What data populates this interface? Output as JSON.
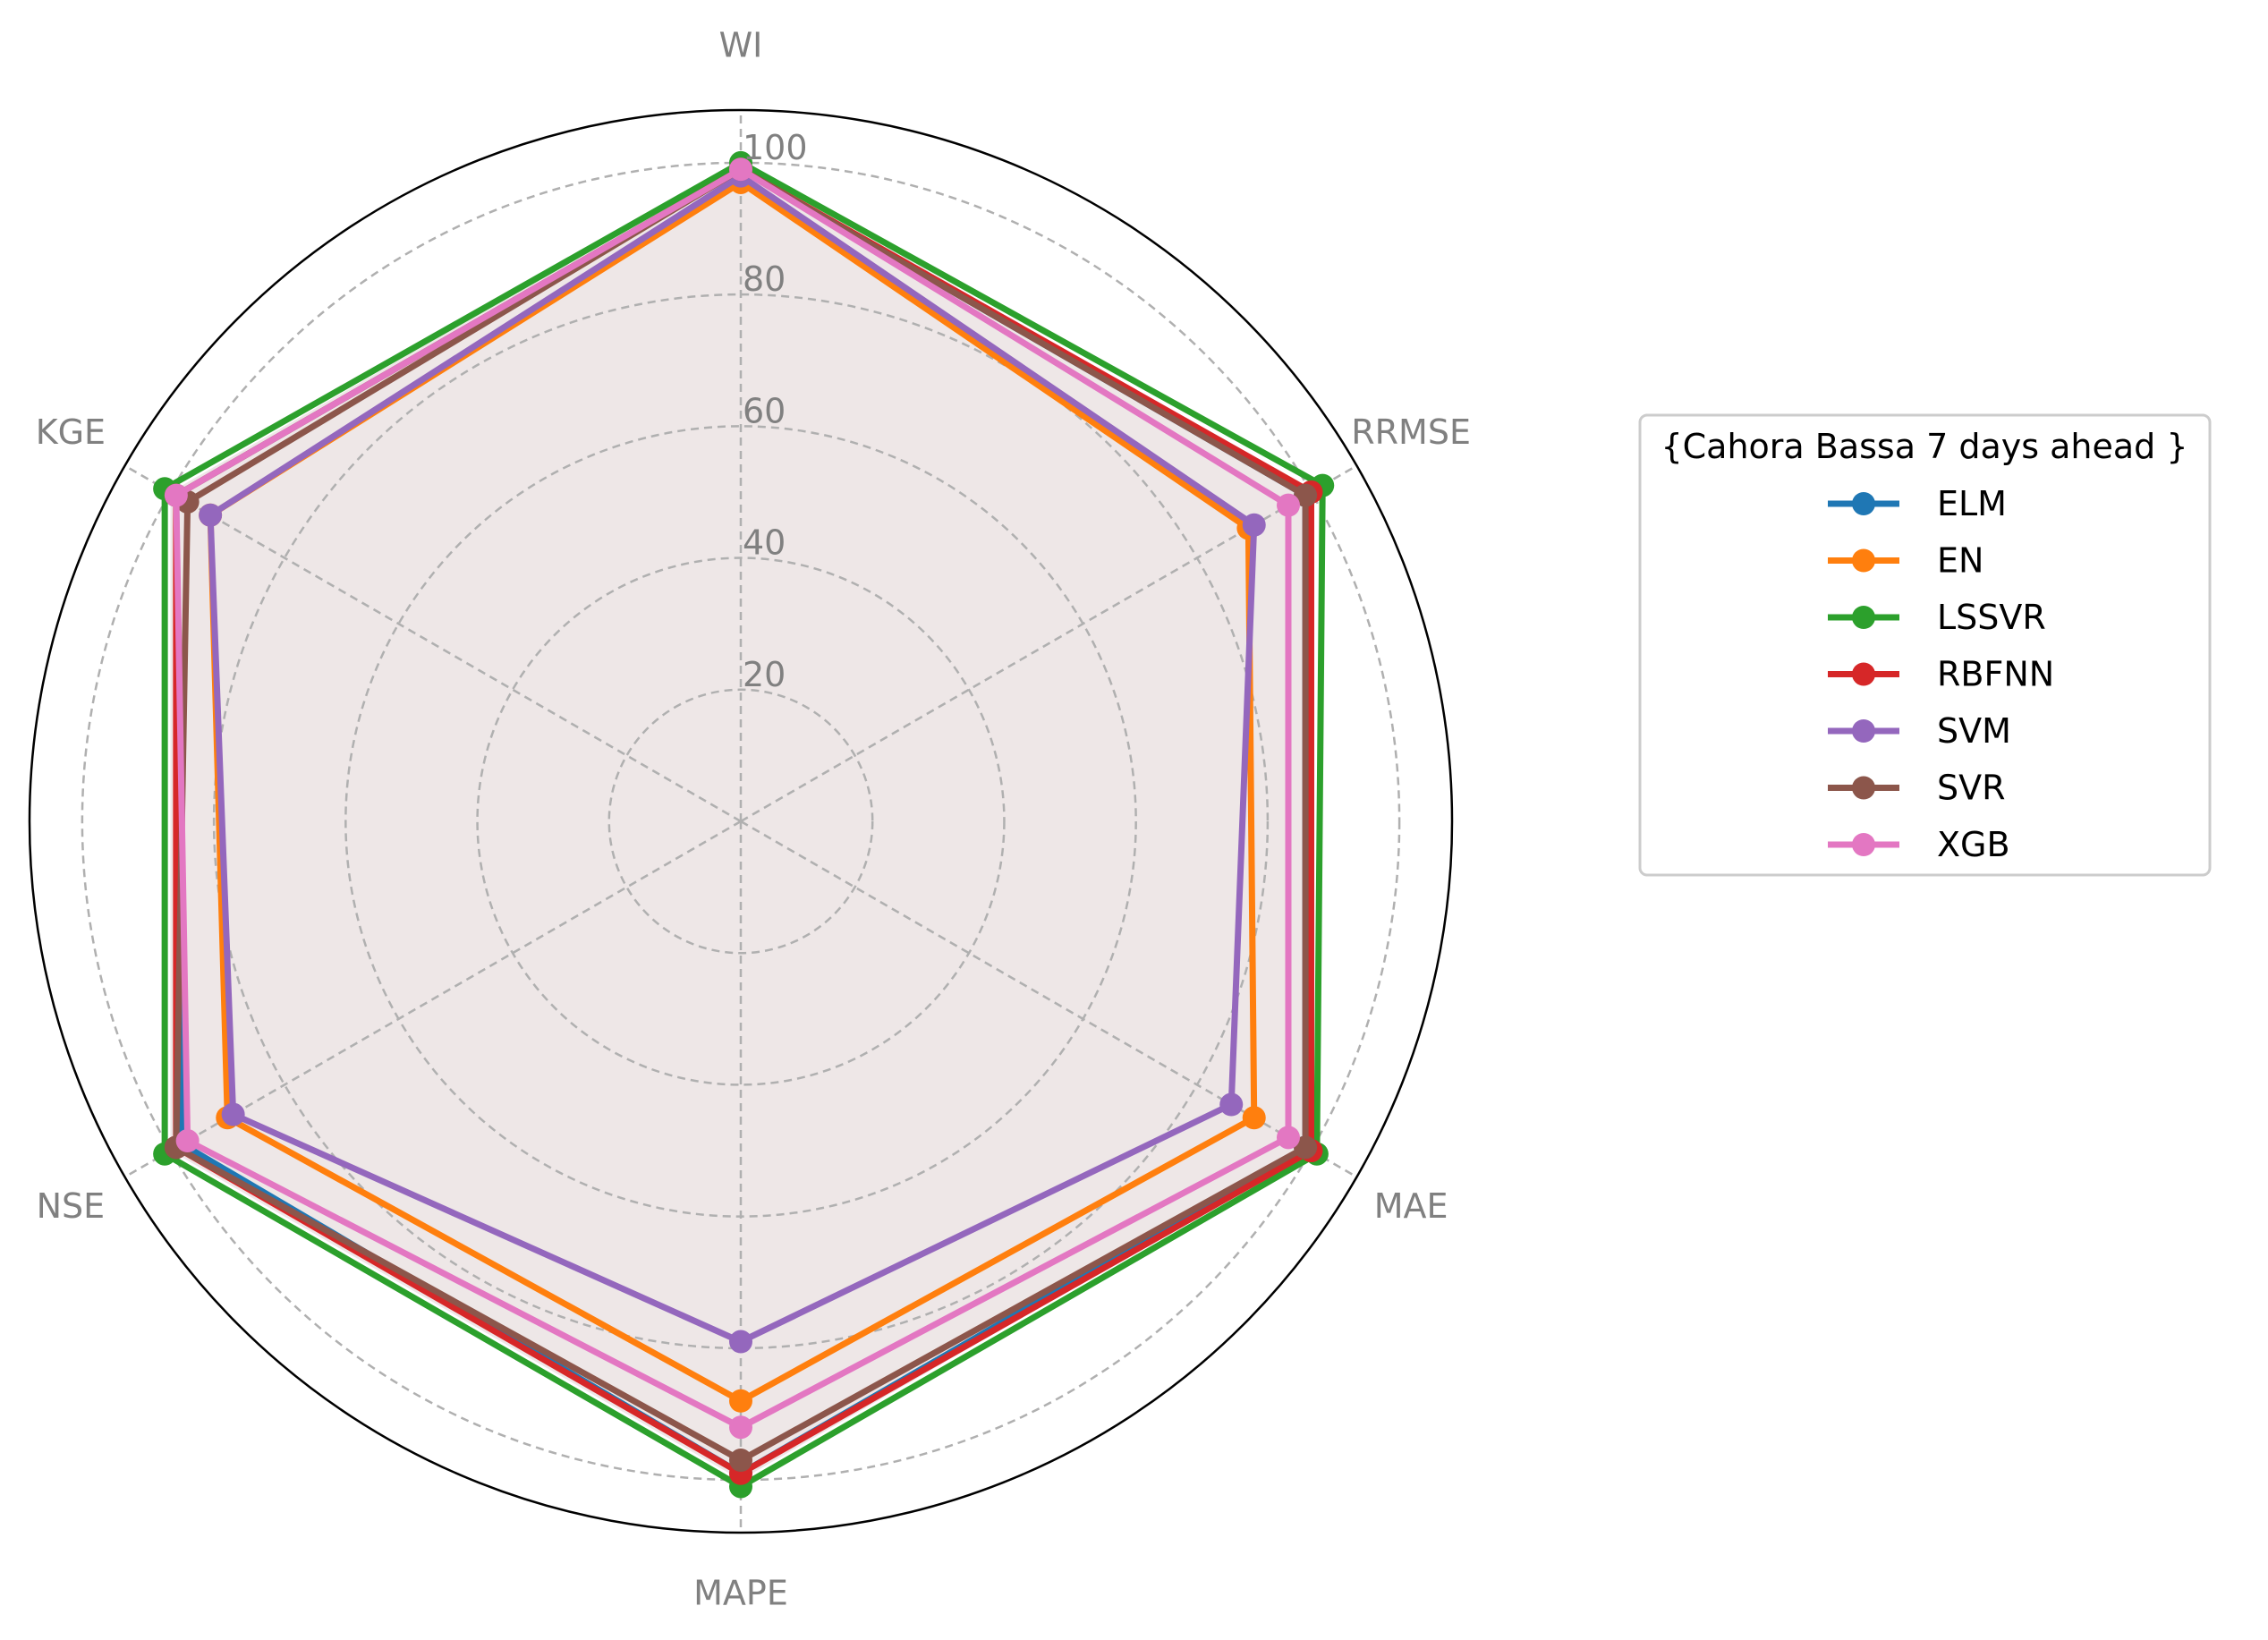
{
  "chart_data": {
    "type": "radar",
    "axes": [
      "WI",
      "RRMSE",
      "MAE",
      "MAPE",
      "NSE",
      "KGE"
    ],
    "r_ticks": [
      "20",
      "40",
      "60",
      "80",
      "100"
    ],
    "rlim": [
      0,
      108
    ],
    "grid": true,
    "legend_title": "{Cahora Bassa 7 days ahead }",
    "legend_position": "right",
    "series": [
      {
        "name": "ELM",
        "color": "#1f77b4",
        "values": [
          99,
          99,
          99,
          99,
          98,
          99
        ]
      },
      {
        "name": "EN",
        "color": "#ff7f0e",
        "values": [
          97,
          89,
          90,
          88,
          90,
          93
        ]
      },
      {
        "name": "LSSVR",
        "color": "#2ca02c",
        "values": [
          100,
          102,
          101,
          101,
          101,
          101
        ]
      },
      {
        "name": "RBFNN",
        "color": "#d62728",
        "values": [
          99,
          100,
          100,
          99,
          99,
          99
        ]
      },
      {
        "name": "SVM",
        "color": "#9467bd",
        "values": [
          98,
          90,
          86,
          79,
          89,
          93
        ]
      },
      {
        "name": "SVR",
        "color": "#8c564b",
        "values": [
          99,
          99,
          99,
          97,
          99,
          97
        ]
      },
      {
        "name": "XGB",
        "color": "#e377c2",
        "values": [
          99,
          96,
          96,
          92,
          97,
          99
        ]
      }
    ]
  }
}
